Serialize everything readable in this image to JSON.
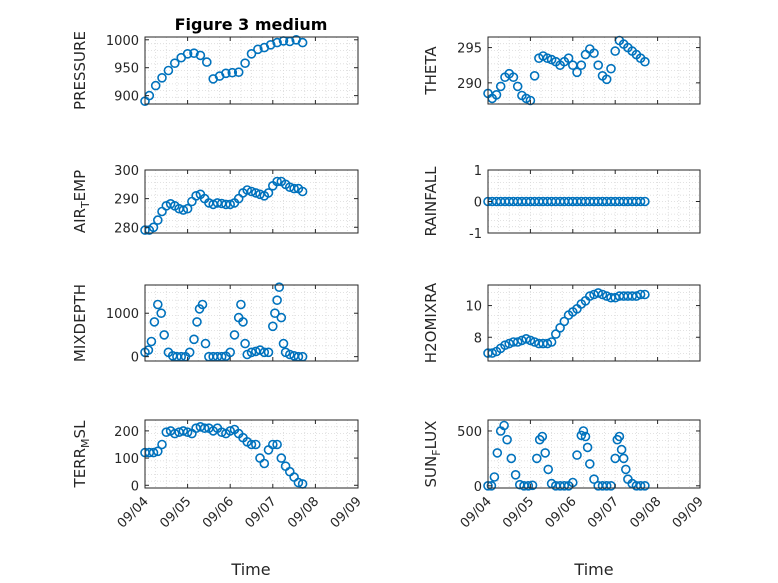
{
  "chart_data": {
    "title": "Figure 3 medium",
    "x_tick_labels": [
      "09/04",
      "09/05",
      "09/06",
      "09/07",
      "09/08",
      "09/09"
    ],
    "xlabel": "Time",
    "marker_color": "#0072BD",
    "axes_color": "#262626",
    "grid_color": "#d9d9d9",
    "panels": [
      {
        "type": "scatter",
        "ylabel": "PRESSURE",
        "ylim": [
          885,
          1005
        ],
        "yticks": [
          900,
          950,
          1000
        ],
        "times": [
          0,
          0.1,
          0.25,
          0.4,
          0.55,
          0.7,
          0.85,
          1.0,
          1.15,
          1.3,
          1.45,
          1.6,
          1.75,
          1.9,
          2.05,
          2.2,
          2.35,
          2.5,
          2.65,
          2.8,
          2.95,
          3.1,
          3.25,
          3.4,
          3.55,
          3.7
        ],
        "values": [
          890,
          900,
          918,
          932,
          945,
          958,
          968,
          975,
          976,
          972,
          960,
          930,
          935,
          940,
          941,
          942,
          958,
          975,
          983,
          986,
          991,
          995,
          998,
          997,
          1000,
          995
        ]
      },
      {
        "type": "scatter",
        "ylabel": "THETA",
        "ylim": [
          287,
          296.5
        ],
        "yticks": [
          290,
          295
        ],
        "times": [
          0,
          0.1,
          0.2,
          0.3,
          0.4,
          0.5,
          0.6,
          0.7,
          0.8,
          0.9,
          1.0,
          1.1,
          1.2,
          1.3,
          1.4,
          1.5,
          1.6,
          1.7,
          1.8,
          1.9,
          2.0,
          2.1,
          2.2,
          2.3,
          2.4,
          2.5,
          2.6,
          2.7,
          2.8,
          2.9,
          3.0,
          3.1,
          3.2,
          3.3,
          3.4,
          3.5,
          3.6,
          3.7
        ],
        "values": [
          288.5,
          287.8,
          288.3,
          289.5,
          290.8,
          291.3,
          290.8,
          289.5,
          288.2,
          287.8,
          287.5,
          291,
          293.5,
          293.8,
          293.5,
          293.3,
          293,
          292.5,
          293,
          293.5,
          292.5,
          291.5,
          292.5,
          294,
          294.8,
          294.2,
          292.5,
          291,
          290.5,
          292,
          294.5,
          296,
          295.5,
          295,
          294.5,
          294,
          293.5,
          293
        ]
      },
      {
        "type": "scatter",
        "ylabel": "AIR_TEMP",
        "ylim": [
          278,
          300
        ],
        "yticks": [
          280,
          290,
          300
        ],
        "times": [
          0,
          0.1,
          0.2,
          0.3,
          0.4,
          0.5,
          0.6,
          0.7,
          0.8,
          0.9,
          1.0,
          1.1,
          1.2,
          1.3,
          1.4,
          1.5,
          1.6,
          1.7,
          1.8,
          1.9,
          2.0,
          2.1,
          2.2,
          2.3,
          2.4,
          2.5,
          2.6,
          2.7,
          2.8,
          2.9,
          3.0,
          3.1,
          3.2,
          3.3,
          3.4,
          3.5,
          3.6,
          3.7
        ],
        "values": [
          279,
          279,
          280,
          282.5,
          285.5,
          287.5,
          288.2,
          287.5,
          286.5,
          286,
          286.5,
          289,
          291,
          291.5,
          290,
          288.5,
          288,
          288.5,
          288.3,
          288,
          288,
          288.5,
          290,
          292,
          293,
          292.5,
          292,
          291.5,
          291,
          292,
          294.5,
          296,
          296,
          295,
          294,
          293.5,
          293.5,
          292.5
        ]
      },
      {
        "type": "scatter",
        "ylabel": "RAINFALL",
        "ylim": [
          -1,
          1
        ],
        "yticks": [
          -1,
          0,
          1
        ],
        "times": [
          0,
          0.1,
          0.2,
          0.3,
          0.4,
          0.5,
          0.6,
          0.7,
          0.8,
          0.9,
          1.0,
          1.1,
          1.2,
          1.3,
          1.4,
          1.5,
          1.6,
          1.7,
          1.8,
          1.9,
          2.0,
          2.1,
          2.2,
          2.3,
          2.4,
          2.5,
          2.6,
          2.7,
          2.8,
          2.9,
          3.0,
          3.1,
          3.2,
          3.3,
          3.4,
          3.5,
          3.6,
          3.7
        ],
        "values": [
          0,
          0,
          0,
          0,
          0,
          0,
          0,
          0,
          0,
          0,
          0,
          0,
          0,
          0,
          0,
          0,
          0,
          0,
          0,
          0,
          0,
          0,
          0,
          0,
          0,
          0,
          0,
          0,
          0,
          0,
          0,
          0,
          0,
          0,
          0,
          0,
          0,
          0
        ]
      },
      {
        "type": "scatter",
        "ylabel": "MIXDEPTH",
        "ylim": [
          -100,
          1650
        ],
        "yticks": [
          0,
          1000
        ],
        "times": [
          0,
          0.08,
          0.15,
          0.22,
          0.3,
          0.38,
          0.45,
          0.55,
          0.65,
          0.75,
          0.85,
          0.95,
          1.05,
          1.15,
          1.22,
          1.28,
          1.35,
          1.42,
          1.5,
          1.6,
          1.7,
          1.8,
          1.9,
          2.0,
          2.1,
          2.2,
          2.25,
          2.3,
          2.35,
          2.4,
          2.5,
          2.6,
          2.7,
          2.8,
          2.9,
          3.0,
          3.05,
          3.1,
          3.15,
          3.2,
          3.25,
          3.3,
          3.4,
          3.5,
          3.6,
          3.7
        ],
        "values": [
          100,
          150,
          350,
          800,
          1200,
          1000,
          500,
          100,
          20,
          0,
          0,
          0,
          100,
          400,
          800,
          1100,
          1200,
          300,
          0,
          0,
          0,
          0,
          10,
          100,
          500,
          900,
          1200,
          800,
          300,
          50,
          100,
          120,
          150,
          100,
          100,
          700,
          1000,
          1300,
          1600,
          900,
          300,
          100,
          50,
          20,
          0,
          0
        ]
      },
      {
        "type": "scatter",
        "ylabel": "H2OMIXRA",
        "ylim": [
          6.5,
          11.3
        ],
        "yticks": [
          8,
          10
        ],
        "times": [
          0,
          0.1,
          0.2,
          0.3,
          0.4,
          0.5,
          0.6,
          0.7,
          0.8,
          0.9,
          1.0,
          1.1,
          1.2,
          1.3,
          1.4,
          1.5,
          1.6,
          1.7,
          1.8,
          1.9,
          2.0,
          2.1,
          2.2,
          2.3,
          2.4,
          2.5,
          2.6,
          2.7,
          2.8,
          2.9,
          3.0,
          3.1,
          3.2,
          3.3,
          3.4,
          3.5,
          3.6,
          3.7
        ],
        "values": [
          7,
          7,
          7.1,
          7.3,
          7.5,
          7.6,
          7.7,
          7.7,
          7.8,
          7.9,
          7.8,
          7.7,
          7.6,
          7.6,
          7.6,
          7.7,
          8.2,
          8.6,
          9.0,
          9.4,
          9.6,
          9.8,
          10.1,
          10.3,
          10.6,
          10.7,
          10.8,
          10.7,
          10.6,
          10.5,
          10.5,
          10.6,
          10.6,
          10.6,
          10.6,
          10.6,
          10.7,
          10.7
        ]
      },
      {
        "type": "scatter",
        "ylabel": "TERR_MSL",
        "ylim": [
          -10,
          240
        ],
        "yticks": [
          0,
          100,
          200
        ],
        "times": [
          0,
          0.1,
          0.2,
          0.3,
          0.4,
          0.5,
          0.6,
          0.7,
          0.8,
          0.9,
          1.0,
          1.1,
          1.2,
          1.3,
          1.4,
          1.5,
          1.6,
          1.7,
          1.8,
          1.9,
          2.0,
          2.1,
          2.2,
          2.3,
          2.4,
          2.5,
          2.6,
          2.7,
          2.8,
          2.9,
          3.0,
          3.1,
          3.2,
          3.3,
          3.4,
          3.5,
          3.6,
          3.7
        ],
        "values": [
          120,
          120,
          120,
          125,
          150,
          195,
          200,
          190,
          195,
          200,
          195,
          190,
          210,
          215,
          210,
          210,
          200,
          210,
          195,
          190,
          200,
          205,
          190,
          175,
          160,
          150,
          150,
          100,
          80,
          130,
          150,
          150,
          100,
          70,
          50,
          30,
          10,
          5
        ]
      },
      {
        "type": "scatter",
        "ylabel": "SUN_FLUX",
        "ylim": [
          -20,
          600
        ],
        "yticks": [
          0,
          500
        ],
        "times": [
          0,
          0.08,
          0.15,
          0.22,
          0.3,
          0.38,
          0.45,
          0.55,
          0.65,
          0.75,
          0.85,
          0.95,
          1.05,
          1.15,
          1.22,
          1.28,
          1.35,
          1.42,
          1.5,
          1.6,
          1.7,
          1.8,
          1.9,
          2.0,
          2.1,
          2.2,
          2.25,
          2.3,
          2.35,
          2.4,
          2.5,
          2.6,
          2.7,
          2.8,
          2.9,
          3.0,
          3.05,
          3.1,
          3.15,
          3.2,
          3.25,
          3.3,
          3.4,
          3.5,
          3.6,
          3.7
        ],
        "values": [
          0,
          0,
          80,
          300,
          500,
          550,
          420,
          250,
          100,
          10,
          0,
          0,
          5,
          250,
          420,
          450,
          300,
          150,
          20,
          0,
          0,
          0,
          0,
          30,
          280,
          460,
          500,
          450,
          350,
          200,
          60,
          0,
          0,
          0,
          0,
          250,
          420,
          450,
          330,
          250,
          150,
          60,
          20,
          0,
          0,
          0
        ]
      }
    ]
  }
}
